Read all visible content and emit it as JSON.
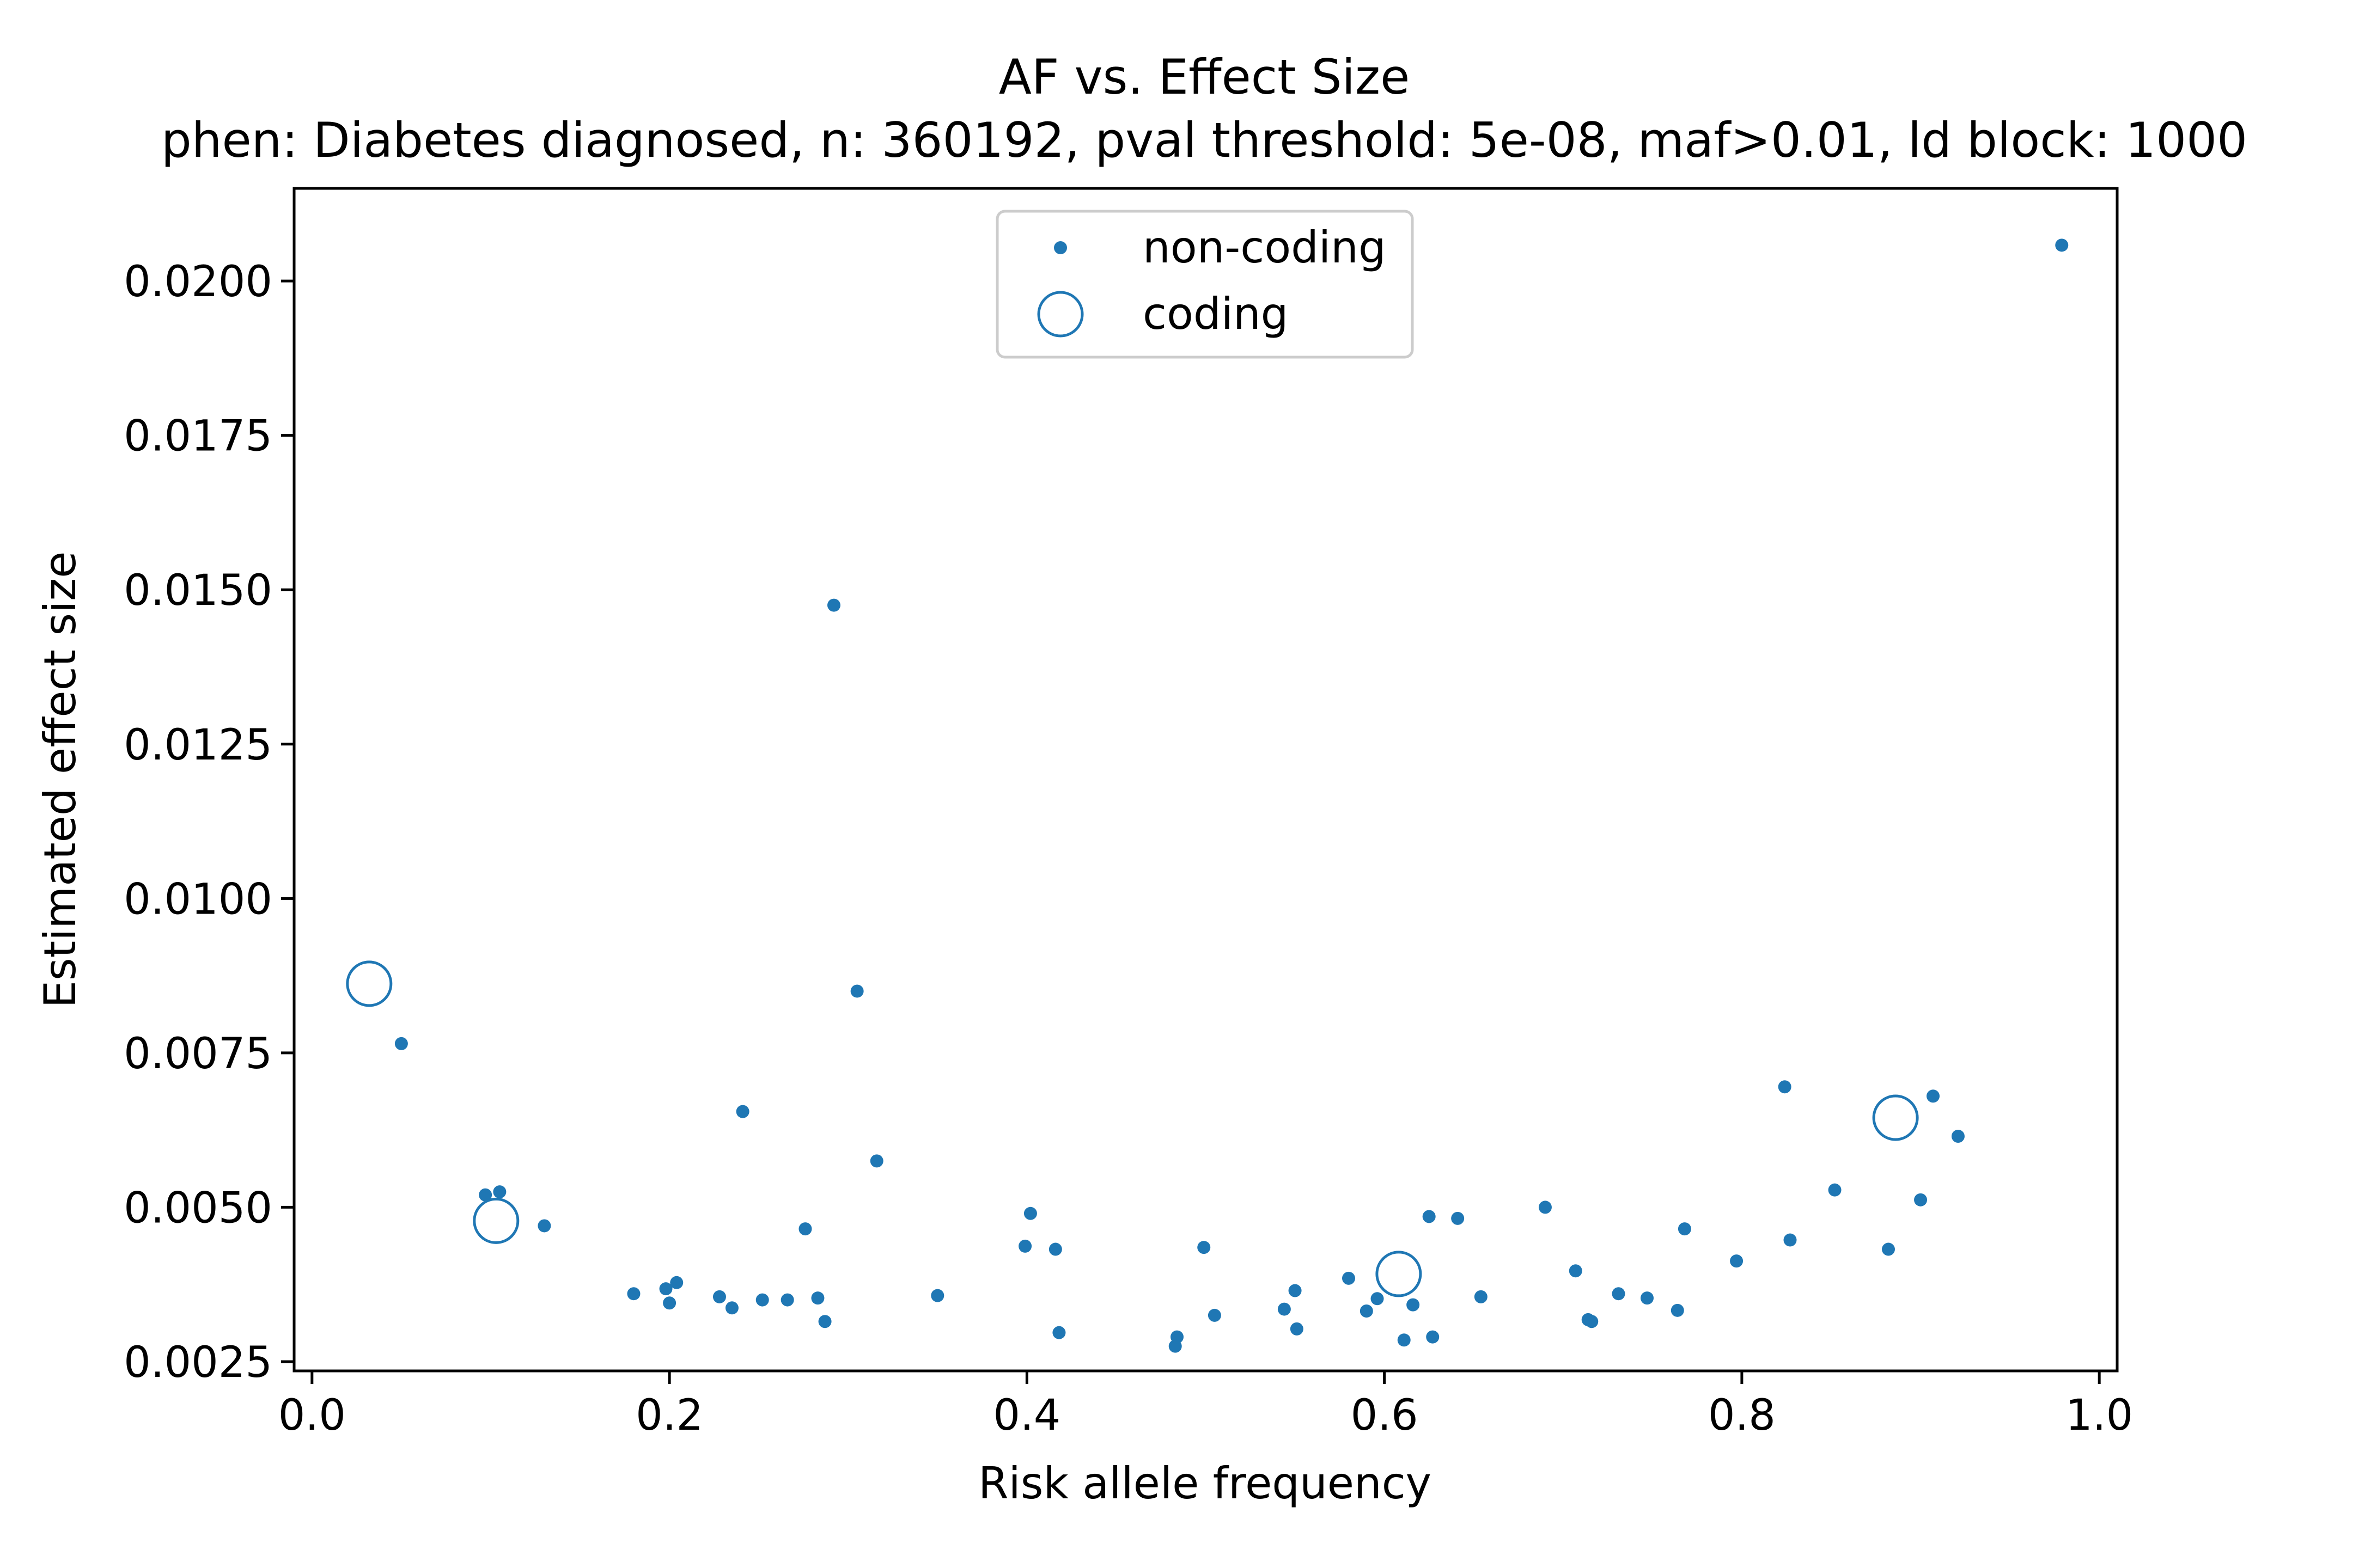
{
  "chart_data": {
    "type": "scatter",
    "title": "AF vs. Effect Size",
    "subtitle": "phen: Diabetes diagnosed, n: 360192, pval threshold: 5e-08, maf>0.01, ld block: 1000",
    "xlabel": "Risk allele frequency",
    "ylabel": "Estimated effect size",
    "xlim": [
      -0.01,
      1.01
    ],
    "ylim": [
      0.00235,
      0.0215
    ],
    "x_ticks": [
      "0.0",
      "0.2",
      "0.4",
      "0.6",
      "0.8",
      "1.0"
    ],
    "y_ticks": [
      "0.0025",
      "0.0050",
      "0.0075",
      "0.0100",
      "0.0125",
      "0.0150",
      "0.0175",
      "0.0200"
    ],
    "grid": false,
    "legend_position": "upper center",
    "color": "#1f77b4",
    "series": [
      {
        "name": "non-coding",
        "marker": "dot",
        "points": [
          [
            0.05,
            0.00765
          ],
          [
            0.097,
            0.0052
          ],
          [
            0.105,
            0.00525
          ],
          [
            0.13,
            0.0047
          ],
          [
            0.18,
            0.0036
          ],
          [
            0.198,
            0.00368
          ],
          [
            0.2,
            0.00345
          ],
          [
            0.204,
            0.00378
          ],
          [
            0.228,
            0.00355
          ],
          [
            0.235,
            0.00337
          ],
          [
            0.241,
            0.00655
          ],
          [
            0.252,
            0.0035
          ],
          [
            0.266,
            0.0035
          ],
          [
            0.276,
            0.00465
          ],
          [
            0.283,
            0.00353
          ],
          [
            0.287,
            0.00315
          ],
          [
            0.292,
            0.01475
          ],
          [
            0.305,
            0.0085
          ],
          [
            0.316,
            0.00575
          ],
          [
            0.35,
            0.00357
          ],
          [
            0.399,
            0.00437
          ],
          [
            0.402,
            0.0049
          ],
          [
            0.416,
            0.00432
          ],
          [
            0.418,
            0.00297
          ],
          [
            0.483,
            0.00275
          ],
          [
            0.484,
            0.0029
          ],
          [
            0.499,
            0.00435
          ],
          [
            0.505,
            0.00325
          ],
          [
            0.544,
            0.00335
          ],
          [
            0.55,
            0.00365
          ],
          [
            0.551,
            0.00303
          ],
          [
            0.58,
            0.00385
          ],
          [
            0.59,
            0.00332
          ],
          [
            0.596,
            0.00352
          ],
          [
            0.611,
            0.00285
          ],
          [
            0.616,
            0.00342
          ],
          [
            0.625,
            0.00485
          ],
          [
            0.627,
            0.0029
          ],
          [
            0.641,
            0.00482
          ],
          [
            0.654,
            0.00355
          ],
          [
            0.69,
            0.005
          ],
          [
            0.707,
            0.00397
          ],
          [
            0.714,
            0.00318
          ],
          [
            0.716,
            0.00315
          ],
          [
            0.731,
            0.0036
          ],
          [
            0.747,
            0.00353
          ],
          [
            0.764,
            0.00333
          ],
          [
            0.768,
            0.00465
          ],
          [
            0.797,
            0.00413
          ],
          [
            0.824,
            0.00695
          ],
          [
            0.827,
            0.00447
          ],
          [
            0.852,
            0.00528
          ],
          [
            0.882,
            0.00432
          ],
          [
            0.9,
            0.00512
          ],
          [
            0.907,
            0.0068
          ],
          [
            0.921,
            0.00615
          ],
          [
            0.979,
            0.02058
          ]
        ]
      },
      {
        "name": "coding",
        "marker": "open-circle",
        "points": [
          [
            0.032,
            0.00862
          ],
          [
            0.103,
            0.00478
          ],
          [
            0.608,
            0.00392
          ],
          [
            0.886,
            0.00645
          ]
        ]
      }
    ]
  }
}
